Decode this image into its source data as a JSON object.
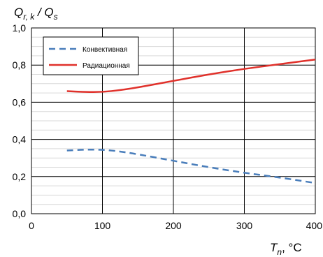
{
  "chart_data": {
    "type": "line",
    "ylabel": {
      "main": "Q",
      "sub1": "r, k",
      "sep": " / ",
      "main2": "Q",
      "sub2": "s"
    },
    "xlabel": {
      "main": "T",
      "sub": "n",
      "unit": ", °C"
    },
    "xlim": [
      0,
      400
    ],
    "ylim": [
      0.0,
      1.0
    ],
    "xticks": [
      0,
      100,
      200,
      300,
      400
    ],
    "yticks": [
      {
        "value": 0.0,
        "label": "0,0"
      },
      {
        "value": 0.2,
        "label": "0,2"
      },
      {
        "value": 0.4,
        "label": "0,4"
      },
      {
        "value": 0.6,
        "label": "0,6"
      },
      {
        "value": 0.8,
        "label": "0,8"
      },
      {
        "value": 1.0,
        "label": "1,0"
      }
    ],
    "grid": true,
    "legend": "top-left",
    "series": [
      {
        "name": "Конвективная",
        "color": "#4a7ebb",
        "style": "dashed",
        "x": [
          50,
          75,
          100,
          125,
          150,
          200,
          250,
          300,
          350,
          400
        ],
        "y": [
          0.34,
          0.345,
          0.345,
          0.335,
          0.32,
          0.285,
          0.25,
          0.22,
          0.195,
          0.165
        ]
      },
      {
        "name": "Радиационная",
        "color": "#e0312b",
        "style": "solid",
        "x": [
          50,
          75,
          100,
          125,
          150,
          200,
          250,
          300,
          350,
          400
        ],
        "y": [
          0.66,
          0.655,
          0.655,
          0.665,
          0.68,
          0.715,
          0.75,
          0.78,
          0.805,
          0.83
        ]
      }
    ]
  }
}
